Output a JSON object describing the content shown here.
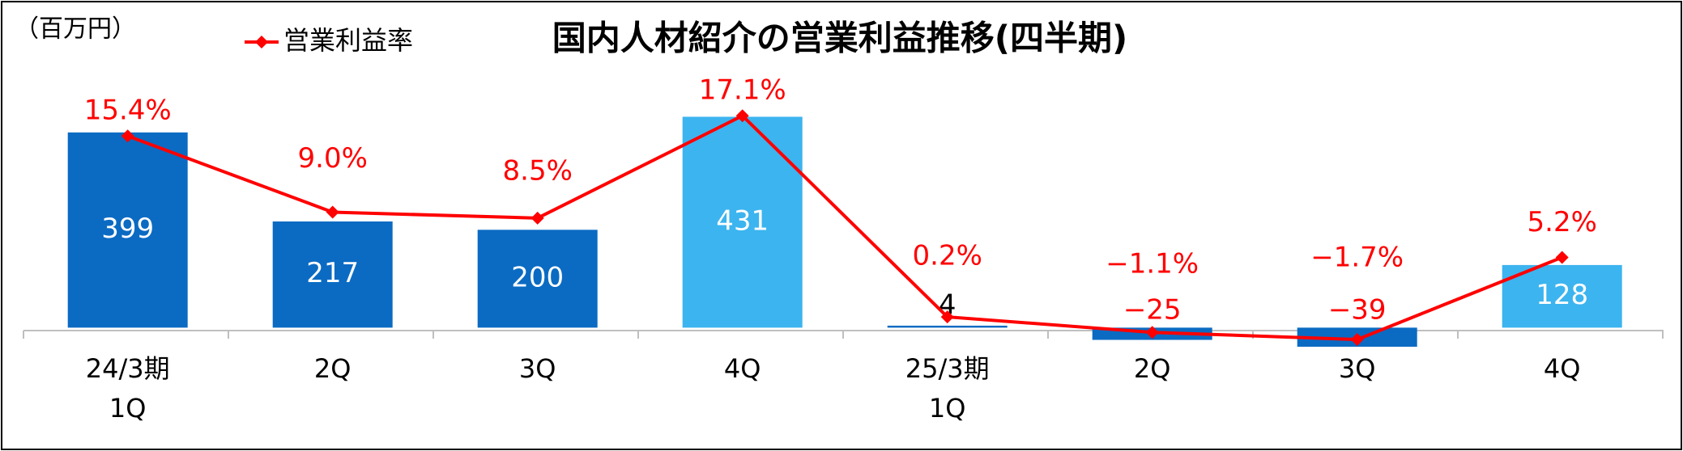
{
  "chart_data": {
    "type": "bar",
    "title": "国内人材紹介の営業利益推移(四半期)",
    "unit_label": "（百万円）",
    "categories": [
      "24/3期\n1Q",
      "2Q",
      "3Q",
      "4Q",
      "25/3期\n1Q",
      "2Q",
      "3Q",
      "4Q"
    ],
    "series": [
      {
        "type": "bar",
        "colors": [
          "#0b6bc3",
          "#0b6bc3",
          "#0b6bc3",
          "#3cb4ef",
          "#0b6bc3",
          "#0b6bc3",
          "#0b6bc3",
          "#3cb4ef"
        ],
        "values": [
          399,
          217,
          200,
          431,
          4,
          -25,
          -39,
          128
        ],
        "value_labels": [
          "399",
          "217",
          "200",
          "431",
          "4",
          "−25",
          "−39",
          "128"
        ]
      },
      {
        "type": "line",
        "name": "営業利益率",
        "axis": "y2",
        "color": "#ff0000",
        "values": [
          15.4,
          9.0,
          8.5,
          17.1,
          0.2,
          -1.1,
          -1.7,
          5.2
        ],
        "value_labels": [
          "15.4%",
          "9.0%",
          "8.5%",
          "17.1%",
          "0.2%",
          "−1.1%",
          "−1.7%",
          "5.2%"
        ]
      }
    ],
    "ylim": [
      -60,
      500
    ],
    "y2lim": [
      -3.17,
      19.85
    ]
  }
}
